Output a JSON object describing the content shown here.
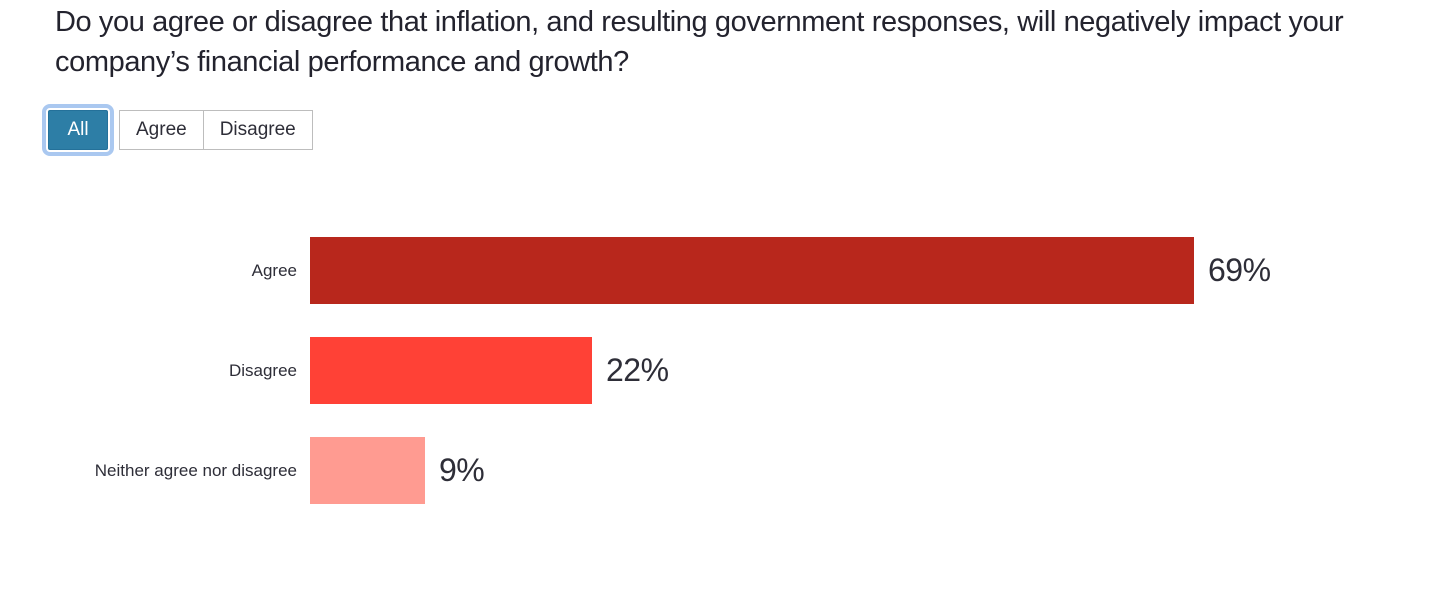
{
  "title": "Do you agree or disagree that inflation, and resulting government responses, will negatively impact your company’s financial performance and growth?",
  "filters": [
    {
      "label": "All",
      "selected": true
    },
    {
      "label": "Agree",
      "selected": false
    },
    {
      "label": "Disagree",
      "selected": false
    }
  ],
  "chart_data": {
    "type": "bar",
    "orientation": "horizontal",
    "title": "Do you agree or disagree that inflation, and resulting government responses, will negatively impact your company’s financial performance and growth?",
    "categories": [
      "Agree",
      "Disagree",
      "Neither agree nor disagree"
    ],
    "values": [
      69,
      22,
      9
    ],
    "value_labels": [
      "69%",
      "22%",
      "9%"
    ],
    "bar_colors": [
      "#b8271c",
      "#ff4136",
      "#ff9b91"
    ],
    "xlim": [
      0,
      100
    ],
    "grid": false,
    "legend": false,
    "value_label_position": "right-of-bar"
  },
  "colors": {
    "text_title": "#23232e",
    "text_labels": "#2e2e38",
    "selected_filter_bg": "#2d7ea6",
    "selected_filter_ring": "#aac8f0",
    "filter_border": "#bdbdbd",
    "background": "#ffffff"
  }
}
